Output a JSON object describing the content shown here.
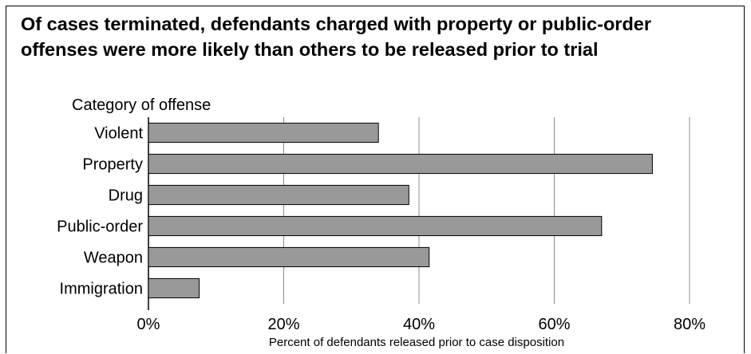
{
  "title_line1": "Of cases terminated, defendants charged with property or public-order",
  "title_line2": "offenses were more likely than others to be released prior to trial",
  "chart_data": {
    "type": "bar",
    "orientation": "horizontal",
    "categories": [
      "Violent",
      "Property",
      "Drug",
      "Public-order",
      "Weapon",
      "Immigration"
    ],
    "values": [
      34,
      74.5,
      38.5,
      67,
      41.5,
      7.5
    ],
    "title": "Of cases terminated, defendants charged with property or public-order offenses were more likely than others to be released prior to trial",
    "category_axis_label": "Category of offense",
    "value_axis_label": "Percent of defendants released prior to case disposition",
    "xlim": [
      0,
      80
    ],
    "ticks": [
      0,
      20,
      40,
      60,
      80
    ],
    "tick_labels": [
      "0%",
      "20%",
      "40%",
      "60%",
      "80%"
    ],
    "grid": true,
    "legend": "none",
    "bar_color": "#999999"
  }
}
